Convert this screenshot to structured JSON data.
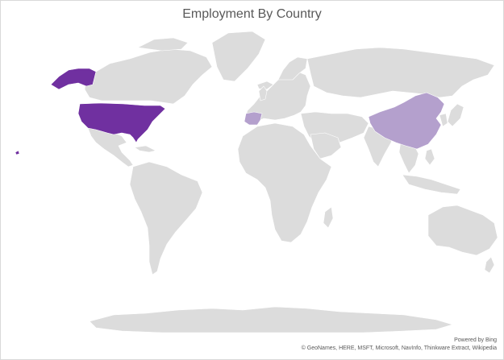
{
  "title": "Employment By Country",
  "attribution": {
    "powered_by": "Powered by Bing",
    "sources": "© GeoNames, HERE, MSFT, Microsoft, NavInfo, Thinkware Extract, Wikipedia"
  },
  "colors": {
    "land": "#dcdcdc",
    "high": "#7030a0",
    "low": "#b4a0cd",
    "border": "#ffffff"
  },
  "chart_data": {
    "type": "map",
    "map_type": "filled",
    "title": "Employment By Country",
    "highlighted_countries": [
      {
        "name": "United States",
        "shade": "high"
      },
      {
        "name": "China",
        "shade": "low"
      },
      {
        "name": "Spain",
        "shade": "low"
      }
    ]
  }
}
